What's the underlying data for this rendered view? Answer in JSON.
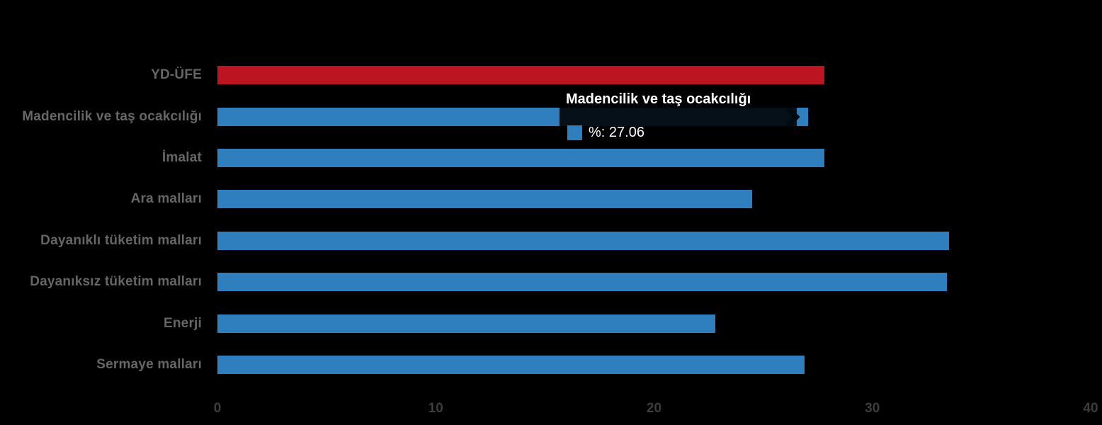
{
  "chart_data": {
    "type": "bar",
    "orientation": "horizontal",
    "series_name": "%",
    "categories": [
      "YD-ÜFE",
      "Madencilik ve taş ocakcılığı",
      "İmalat",
      "Ara malları",
      "Dayanıklı tüketim malları",
      "Dayanıksız tüketim malları",
      "Enerji",
      "Sermaye malları"
    ],
    "values": [
      27.8,
      27.06,
      27.8,
      24.5,
      33.5,
      33.4,
      22.8,
      26.9
    ],
    "bar_colors": [
      "#bc1420",
      "#2f7ebe",
      "#2f7ebe",
      "#2f7ebe",
      "#2f7ebe",
      "#2f7ebe",
      "#2f7ebe",
      "#2f7ebe"
    ],
    "xlim": [
      0,
      40
    ],
    "x_ticks": [
      0,
      10,
      20,
      30,
      40
    ],
    "grid": "off",
    "legend": "none",
    "title": "",
    "xlabel": "",
    "ylabel": ""
  },
  "tooltip": {
    "title": "Madencilik ve taş ocakcılığı",
    "label": "%: 27.06",
    "swatch_color": "#2f7ebe",
    "for_category_index": 1
  },
  "colors": {
    "background": "#000000",
    "bar_red": "#bc1420",
    "bar_blue": "#2f7ebe",
    "category_label": "#666666",
    "axis_label": "#3d3d3d",
    "tooltip_text": "#ffffff",
    "chevron": "#000a12"
  }
}
